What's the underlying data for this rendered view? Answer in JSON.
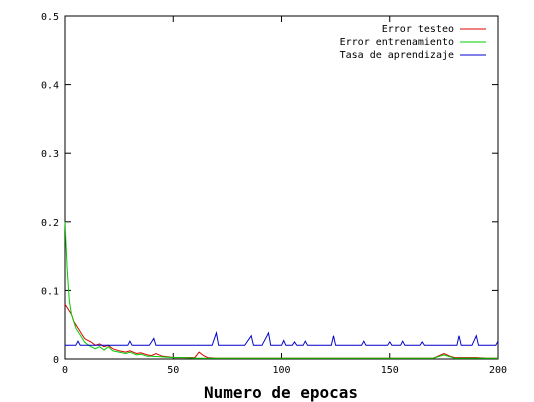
{
  "chart_data": {
    "type": "line",
    "title": "",
    "xlabel": "Numero de epocas",
    "ylabel": "",
    "xlim": [
      0,
      200
    ],
    "ylim": [
      0,
      0.5
    ],
    "x_ticks": [
      0,
      50,
      100,
      150,
      200
    ],
    "y_ticks": [
      0,
      0.1,
      0.2,
      0.3,
      0.4,
      0.5
    ],
    "x_tick_labels": [
      "0",
      "50",
      "100",
      "150",
      "200"
    ],
    "y_tick_labels": [
      "0",
      "0.1",
      "0.2",
      "0.3",
      "0.4",
      "0.5"
    ],
    "grid": false,
    "legend_position": "top-right",
    "series": [
      {
        "name": "Error testeo",
        "color": "#dd0000",
        "x": [
          0,
          1,
          2,
          3,
          4,
          5,
          6,
          7,
          8,
          9,
          10,
          12,
          14,
          16,
          18,
          20,
          22,
          25,
          28,
          30,
          33,
          35,
          38,
          40,
          42,
          45,
          48,
          50,
          55,
          60,
          62,
          64,
          66,
          70,
          80,
          100,
          120,
          150,
          170,
          175,
          178,
          180,
          185,
          190,
          195,
          200
        ],
        "y": [
          0.08,
          0.075,
          0.07,
          0.065,
          0.055,
          0.05,
          0.045,
          0.04,
          0.035,
          0.03,
          0.028,
          0.025,
          0.02,
          0.022,
          0.018,
          0.02,
          0.015,
          0.012,
          0.01,
          0.012,
          0.008,
          0.009,
          0.006,
          0.005,
          0.008,
          0.004,
          0.003,
          0.002,
          0.002,
          0.002,
          0.01,
          0.005,
          0.002,
          0.001,
          0.001,
          0.001,
          0.001,
          0.001,
          0.001,
          0.008,
          0.004,
          0.002,
          0.002,
          0.002,
          0.001,
          0.001
        ]
      },
      {
        "name": "Error entrenamiento",
        "color": "#00cc00",
        "x": [
          0,
          1,
          2,
          3,
          4,
          5,
          6,
          7,
          8,
          9,
          10,
          12,
          14,
          16,
          18,
          20,
          22,
          25,
          28,
          30,
          33,
          35,
          38,
          40,
          45,
          50,
          55,
          60,
          70,
          80,
          100,
          120,
          150,
          170,
          175,
          178,
          180,
          190,
          200
        ],
        "y": [
          0.2,
          0.13,
          0.085,
          0.065,
          0.055,
          0.045,
          0.04,
          0.035,
          0.03,
          0.025,
          0.022,
          0.018,
          0.015,
          0.018,
          0.013,
          0.018,
          0.012,
          0.01,
          0.008,
          0.01,
          0.006,
          0.007,
          0.004,
          0.004,
          0.003,
          0.002,
          0.002,
          0.001,
          0.001,
          0.001,
          0.001,
          0.001,
          0.001,
          0.001,
          0.006,
          0.003,
          0.001,
          0.001,
          0.001
        ]
      },
      {
        "name": "Tasa de aprendizaje",
        "color": "#0000cc",
        "x": [
          0,
          5,
          6,
          7,
          8,
          29,
          30,
          31,
          39,
          41,
          42,
          43,
          68,
          70,
          71,
          72,
          83,
          86,
          87,
          88,
          91,
          94,
          95,
          96,
          100,
          101,
          102,
          105,
          106,
          107,
          110,
          111,
          112,
          123,
          124,
          125,
          126,
          137,
          138,
          139,
          149,
          150,
          151,
          155,
          156,
          157,
          164,
          165,
          166,
          181,
          182,
          183,
          184,
          188,
          190,
          191,
          192,
          199,
          200
        ],
        "y": [
          0.02,
          0.02,
          0.026,
          0.02,
          0.02,
          0.02,
          0.026,
          0.02,
          0.02,
          0.03,
          0.02,
          0.02,
          0.02,
          0.038,
          0.02,
          0.02,
          0.02,
          0.034,
          0.02,
          0.02,
          0.02,
          0.038,
          0.02,
          0.02,
          0.02,
          0.027,
          0.02,
          0.02,
          0.025,
          0.02,
          0.02,
          0.026,
          0.02,
          0.02,
          0.034,
          0.02,
          0.02,
          0.02,
          0.026,
          0.02,
          0.02,
          0.025,
          0.02,
          0.02,
          0.026,
          0.02,
          0.02,
          0.025,
          0.02,
          0.02,
          0.034,
          0.02,
          0.02,
          0.02,
          0.034,
          0.02,
          0.02,
          0.02,
          0.026
        ]
      }
    ]
  }
}
